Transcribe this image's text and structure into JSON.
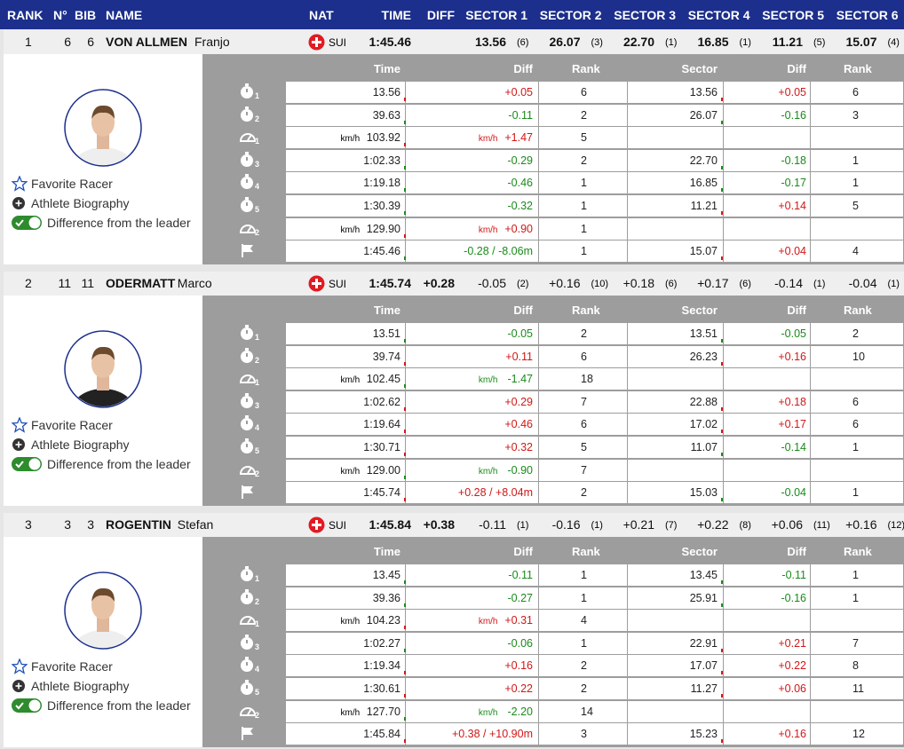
{
  "header": {
    "columns": [
      "RANK",
      "N°",
      "BIB",
      "NAME",
      "NAT",
      "TIME",
      "DIFF",
      "SECTOR 1",
      "SECTOR 2",
      "SECTOR 3",
      "SECTOR 4",
      "SECTOR 5",
      "SECTOR 6"
    ]
  },
  "detail_columns": [
    "Time",
    "Diff",
    "Rank",
    "Sector",
    "Diff",
    "Rank"
  ],
  "racers": [
    {
      "rank": "1",
      "no": "6",
      "bib": "6",
      "surname": "VON ALLMEN",
      "first_name": "Franjo",
      "nat": "SUI",
      "time": "1:45.46",
      "sectors": [
        {
          "value": "13.56",
          "rank": "(6)"
        },
        {
          "value": "26.07",
          "rank": "(3)"
        },
        {
          "value": "22.70",
          "rank": "(1)"
        },
        {
          "value": "16.85",
          "rank": "(1)"
        },
        {
          "value": "11.21",
          "rank": "(5)"
        },
        {
          "value": "15.07",
          "rank": "(4)"
        }
      ],
      "links": [
        "Favorite Racer",
        "Athlete Biography",
        "Difference from the leader"
      ],
      "rows": [
        {
          "index": "1",
          "time": "13.56",
          "diff": "+0.05",
          "rank": "6",
          "sector": "13.56",
          "sector_diff": "+0.05",
          "sector_rank": "6"
        },
        {
          "index": "2",
          "time": "39.63",
          "diff": "-0.11",
          "rank": "2",
          "sector": "26.07",
          "sector_diff": "-0.16",
          "sector_rank": "3"
        },
        {
          "index": "1",
          "unit": "km/h",
          "time": "103.92",
          "diff": "+1.47",
          "rank": "5"
        },
        {
          "index": "3",
          "time": "1:02.33",
          "diff": "-0.29",
          "rank": "2",
          "sector": "22.70",
          "sector_diff": "-0.18",
          "sector_rank": "1"
        },
        {
          "index": "4",
          "time": "1:19.18",
          "diff": "-0.46",
          "rank": "1",
          "sector": "16.85",
          "sector_diff": "-0.17",
          "sector_rank": "1"
        },
        {
          "index": "5",
          "time": "1:30.39",
          "diff": "-0.32",
          "rank": "1",
          "sector": "11.21",
          "sector_diff": "+0.14",
          "sector_rank": "5"
        },
        {
          "index": "2",
          "unit": "km/h",
          "time": "129.90",
          "diff": "+0.90",
          "rank": "1"
        },
        {
          "time": "1:45.46",
          "diff": "-0.28 / -8.06m",
          "rank": "1",
          "sector": "15.07",
          "sector_diff": "+0.04",
          "sector_rank": "4"
        }
      ]
    },
    {
      "rank": "2",
      "no": "11",
      "bib": "11",
      "surname": "ODERMATT",
      "first_name": "Marco",
      "nat": "SUI",
      "time": "1:45.74",
      "diff": "+0.28",
      "sectors": [
        {
          "value": "-0.05",
          "rank": "(2)"
        },
        {
          "value": "+0.16",
          "rank": "(10)"
        },
        {
          "value": "+0.18",
          "rank": "(6)"
        },
        {
          "value": "+0.17",
          "rank": "(6)"
        },
        {
          "value": "-0.14",
          "rank": "(1)"
        },
        {
          "value": "-0.04",
          "rank": "(1)"
        }
      ],
      "links": [
        "Favorite Racer",
        "Athlete Biography",
        "Difference from the leader"
      ],
      "rows": [
        {
          "index": "1",
          "time": "13.51",
          "diff": "-0.05",
          "rank": "2",
          "sector": "13.51",
          "sector_diff": "-0.05",
          "sector_rank": "2"
        },
        {
          "index": "2",
          "time": "39.74",
          "diff": "+0.11",
          "rank": "6",
          "sector": "26.23",
          "sector_diff": "+0.16",
          "sector_rank": "10"
        },
        {
          "index": "1",
          "unit": "km/h",
          "time": "102.45",
          "diff": "-1.47",
          "rank": "18"
        },
        {
          "index": "3",
          "time": "1:02.62",
          "diff": "+0.29",
          "rank": "7",
          "sector": "22.88",
          "sector_diff": "+0.18",
          "sector_rank": "6"
        },
        {
          "index": "4",
          "time": "1:19.64",
          "diff": "+0.46",
          "rank": "6",
          "sector": "17.02",
          "sector_diff": "+0.17",
          "sector_rank": "6"
        },
        {
          "index": "5",
          "time": "1:30.71",
          "diff": "+0.32",
          "rank": "5",
          "sector": "11.07",
          "sector_diff": "-0.14",
          "sector_rank": "1"
        },
        {
          "index": "2",
          "unit": "km/h",
          "time": "129.00",
          "diff": "-0.90",
          "rank": "7"
        },
        {
          "time": "1:45.74",
          "diff": "+0.28 / +8.04m",
          "rank": "2",
          "sector": "15.03",
          "sector_diff": "-0.04",
          "sector_rank": "1"
        }
      ]
    },
    {
      "rank": "3",
      "no": "3",
      "bib": "3",
      "surname": "ROGENTIN",
      "first_name": "Stefan",
      "nat": "SUI",
      "time": "1:45.84",
      "diff": "+0.38",
      "sectors": [
        {
          "value": "-0.11",
          "rank": "(1)"
        },
        {
          "value": "-0.16",
          "rank": "(1)"
        },
        {
          "value": "+0.21",
          "rank": "(7)"
        },
        {
          "value": "+0.22",
          "rank": "(8)"
        },
        {
          "value": "+0.06",
          "rank": "(11)"
        },
        {
          "value": "+0.16",
          "rank": "(12)"
        }
      ],
      "links": [
        "Favorite Racer",
        "Athlete Biography",
        "Difference from the leader"
      ],
      "rows": [
        {
          "index": "1",
          "time": "13.45",
          "diff": "-0.11",
          "rank": "1",
          "sector": "13.45",
          "sector_diff": "-0.11",
          "sector_rank": "1"
        },
        {
          "index": "2",
          "time": "39.36",
          "diff": "-0.27",
          "rank": "1",
          "sector": "25.91",
          "sector_diff": "-0.16",
          "sector_rank": "1"
        },
        {
          "index": "1",
          "unit": "km/h",
          "time": "104.23",
          "diff": "+0.31",
          "rank": "4"
        },
        {
          "index": "3",
          "time": "1:02.27",
          "diff": "-0.06",
          "rank": "1",
          "sector": "22.91",
          "sector_diff": "+0.21",
          "sector_rank": "7"
        },
        {
          "index": "4",
          "time": "1:19.34",
          "diff": "+0.16",
          "rank": "2",
          "sector": "17.07",
          "sector_diff": "+0.22",
          "sector_rank": "8"
        },
        {
          "index": "5",
          "time": "1:30.61",
          "diff": "+0.22",
          "rank": "2",
          "sector": "11.27",
          "sector_diff": "+0.06",
          "sector_rank": "11"
        },
        {
          "index": "2",
          "unit": "km/h",
          "time": "127.70",
          "diff": "-2.20",
          "rank": "14"
        },
        {
          "time": "1:45.84",
          "diff": "+0.38 / +10.90m",
          "rank": "3",
          "sector": "15.23",
          "sector_diff": "+0.16",
          "sector_rank": "12"
        }
      ]
    }
  ]
}
